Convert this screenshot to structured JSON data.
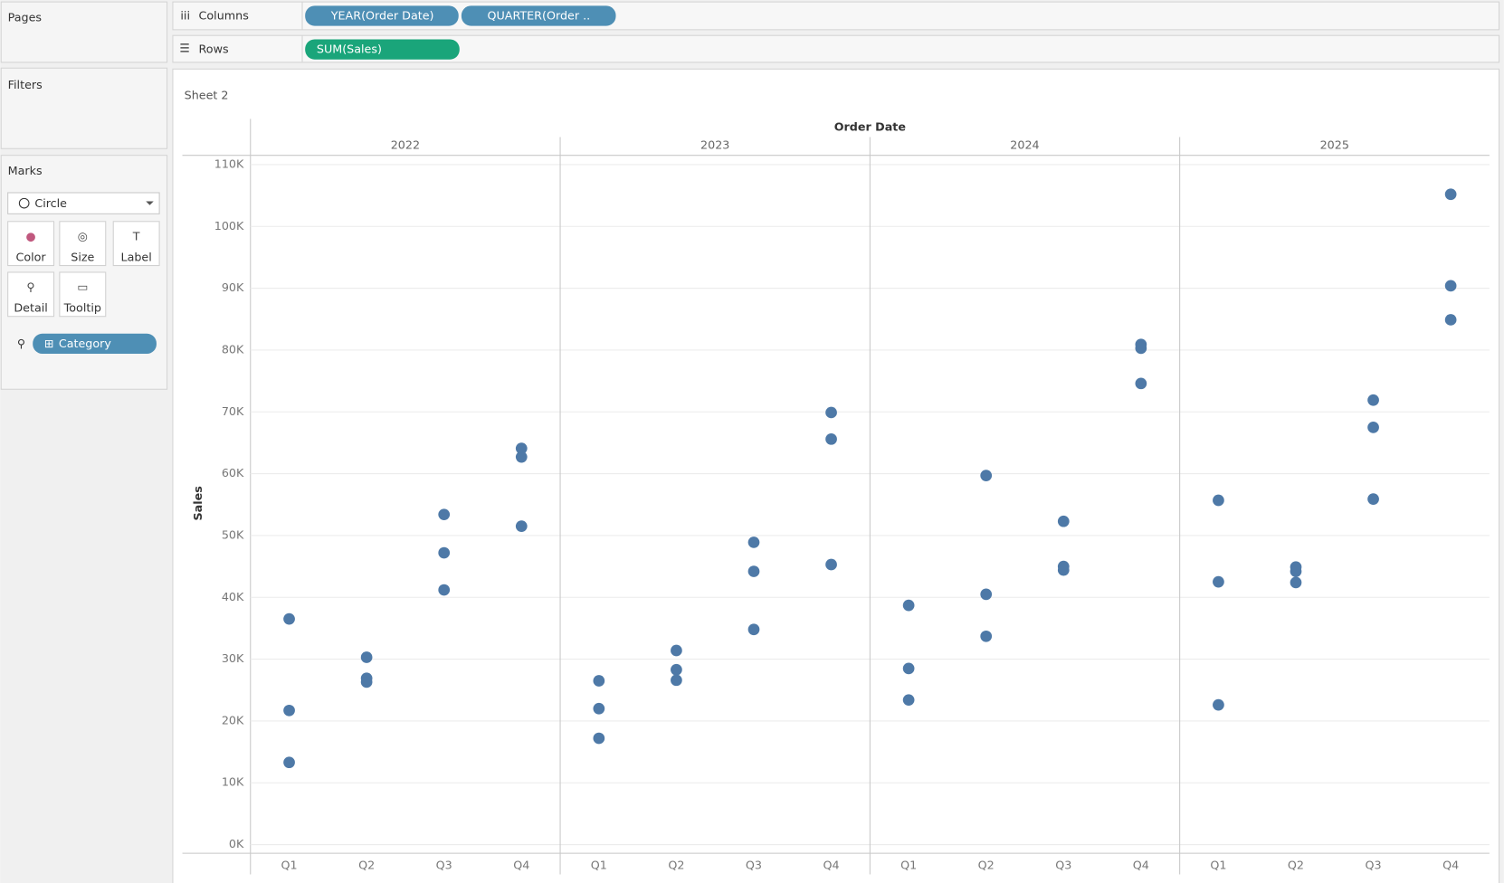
{
  "ui": {
    "pages": "Pages",
    "filters": "Filters",
    "marks": "Marks",
    "mark_type": "Circle",
    "mark_buttons": [
      "Color",
      "Size",
      "Label",
      "Detail",
      "Tooltip"
    ],
    "detail_pill": "Category",
    "columns_label": "Columns",
    "columns_pills": [
      "YEAR(Order Date)",
      "QUARTER(Order .."
    ],
    "rows_label": "Rows",
    "rows_pills": [
      "SUM(Sales)"
    ],
    "sheet_title": "Sheet 2"
  },
  "chart_data": {
    "type": "scatter",
    "x_header": "Order Date",
    "y_label": "Sales",
    "groups": [
      "2022",
      "2023",
      "2024",
      "2025"
    ],
    "categories": [
      "Q1",
      "Q2",
      "Q3",
      "Q4",
      "Q1",
      "Q2",
      "Q3",
      "Q4",
      "Q1",
      "Q2",
      "Q3",
      "Q4",
      "Q1",
      "Q2",
      "Q3",
      "Q4"
    ],
    "values": [
      [
        36500,
        21700,
        13300
      ],
      [
        30300,
        26900,
        26300
      ],
      [
        53400,
        47200,
        41200
      ],
      [
        64100,
        62700,
        51500
      ],
      [
        26500,
        22000,
        17200
      ],
      [
        31400,
        28300,
        26600
      ],
      [
        48900,
        44200,
        34800
      ],
      [
        69900,
        65600,
        45300
      ],
      [
        38700,
        28500,
        23400
      ],
      [
        59700,
        40500,
        33700
      ],
      [
        52300,
        45000,
        44400
      ],
      [
        80900,
        80300,
        74600
      ],
      [
        55700,
        42500,
        22600
      ],
      [
        44900,
        44200,
        42400
      ],
      [
        71900,
        67500,
        55900
      ],
      [
        105200,
        90400,
        84900
      ]
    ],
    "color": "#4e79a7",
    "ylim": [
      -1400,
      111500
    ],
    "yticks": [
      {
        "value": 0,
        "label": "0K"
      },
      {
        "value": 10000,
        "label": "10K"
      },
      {
        "value": 20000,
        "label": "20K"
      },
      {
        "value": 30000,
        "label": "30K"
      },
      {
        "value": 40000,
        "label": "40K"
      },
      {
        "value": 50000,
        "label": "50K"
      },
      {
        "value": 60000,
        "label": "60K"
      },
      {
        "value": 70000,
        "label": "70K"
      },
      {
        "value": 80000,
        "label": "80K"
      },
      {
        "value": 90000,
        "label": "90K"
      },
      {
        "value": 100000,
        "label": "100K"
      },
      {
        "value": 110000,
        "label": "110K"
      }
    ],
    "grid": true
  }
}
